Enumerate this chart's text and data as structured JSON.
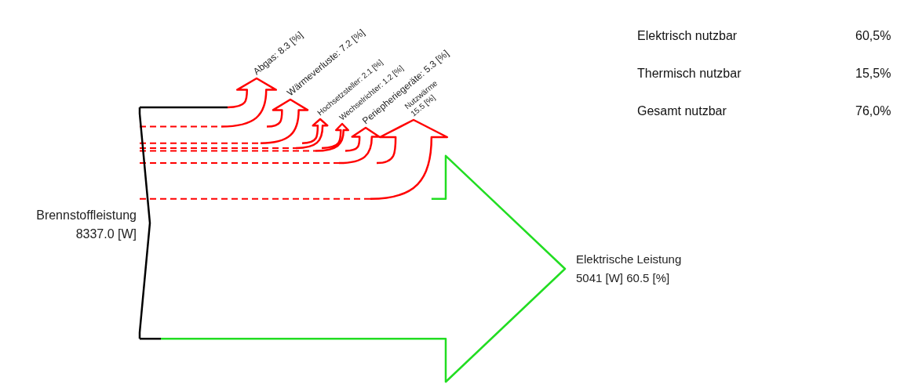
{
  "chart_data": {
    "type": "other",
    "categories": [
      "Brennstoffleistung",
      "Abgas",
      "Wärmeverluste",
      "Hochsetzsteller",
      "Wechselrichter",
      "Periepheriegeräte",
      "Nutzwärme",
      "Elektrische Leistung"
    ],
    "values": [
      8337.0,
      8.3,
      7.2,
      2.1,
      1.2,
      5.3,
      15.5,
      60.5
    ],
    "value_labels": [
      "8337.0 [W]",
      ": 8.3 [%]",
      ": 7.2 [%]",
      ": 2.1 [%]",
      ": 1.2 [%]",
      ": 5.3 [%]",
      "15.5 [%]",
      "5041 [W] 60.5 [%]"
    ],
    "colors": [
      "#000000",
      "#ff0000",
      "#ff0000",
      "#ff0000",
      "#ff0000",
      "#ff0000",
      "#ff0000",
      "#22dd22"
    ],
    "annotations": [
      "Elektrisch nutzbar",
      "60,5%",
      "Thermisch nutzbar",
      "15,5%",
      "Gesamt nutzbar",
      "76,0%"
    ]
  }
}
